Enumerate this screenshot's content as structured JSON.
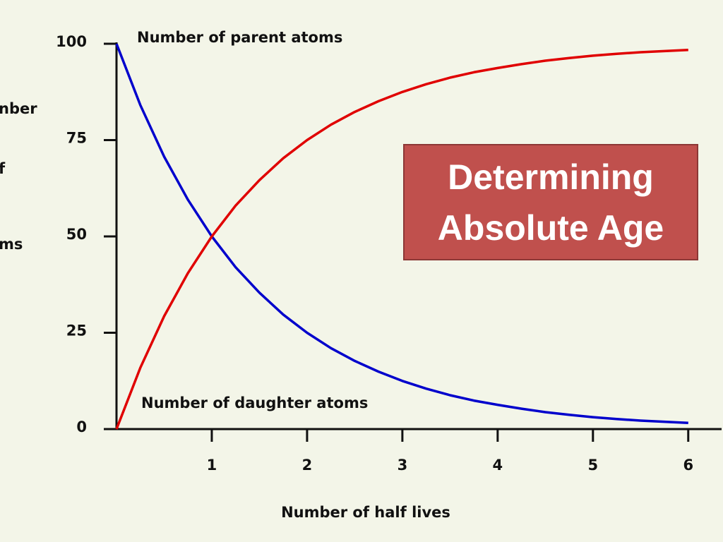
{
  "chart_data": {
    "type": "line",
    "title": "Determining Absolute Age",
    "x_label": "Number of half lives",
    "y_label_fragments": [
      "nber",
      "f",
      "ms"
    ],
    "x": [
      0,
      0.25,
      0.5,
      0.75,
      1,
      1.25,
      1.5,
      1.75,
      2,
      2.25,
      2.5,
      2.75,
      3,
      3.25,
      3.5,
      3.75,
      4,
      4.25,
      4.5,
      4.75,
      5,
      5.25,
      5.5,
      5.75,
      6
    ],
    "series": [
      {
        "name": "Number of parent atoms",
        "color": "#0000cc",
        "values": [
          100,
          84.1,
          70.7,
          59.5,
          50,
          42.0,
          35.4,
          29.7,
          25,
          21.0,
          17.7,
          14.9,
          12.5,
          10.5,
          8.8,
          7.4,
          6.3,
          5.3,
          4.4,
          3.7,
          3.1,
          2.6,
          2.2,
          1.9,
          1.6
        ]
      },
      {
        "name": "Number of daughter atoms",
        "color": "#e00000",
        "values": [
          0,
          15.9,
          29.3,
          40.5,
          50,
          58.0,
          64.6,
          70.3,
          75,
          79.0,
          82.3,
          85.1,
          87.5,
          89.5,
          91.2,
          92.6,
          93.7,
          94.7,
          95.6,
          96.3,
          96.9,
          97.4,
          97.8,
          98.1,
          98.4
        ]
      }
    ],
    "xlim": [
      0,
      6.35
    ],
    "xticks": [
      1,
      2,
      3,
      4,
      5,
      6
    ],
    "ylim": [
      0,
      100
    ],
    "yticks": [
      0,
      25,
      50,
      75,
      100
    ],
    "grid": false
  }
}
